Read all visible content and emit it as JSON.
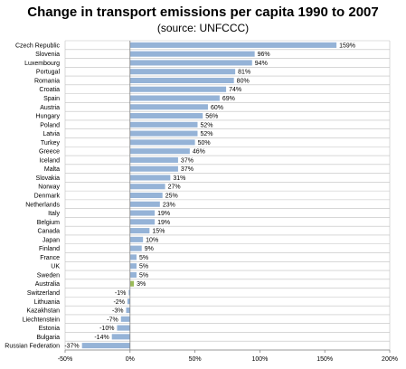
{
  "chart_data": {
    "type": "bar",
    "orientation": "horizontal",
    "title": "Change in transport emissions per capita 1990 to 2007",
    "subtitle": "(source: UNFCCC)",
    "categories": [
      "Czech Republic",
      "Slovenia",
      "Luxembourg",
      "Portugal",
      "Romania",
      "Croatia",
      "Spain",
      "Austria",
      "Hungary",
      "Poland",
      "Latvia",
      "Turkey",
      "Greece",
      "Iceland",
      "Malta",
      "Slovakia",
      "Norway",
      "Denmark",
      "Netherlands",
      "Italy",
      "Belgium",
      "Canada",
      "Japan",
      "Finland",
      "France",
      "UK",
      "Sweden",
      "Australia",
      "Switzerland",
      "Lithuania",
      "Kazakhstan",
      "Liechtenstein",
      "Estonia",
      "Bulgaria",
      "Russian Federation"
    ],
    "values": [
      159,
      96,
      94,
      81,
      80,
      74,
      69,
      60,
      56,
      52,
      52,
      50,
      46,
      37,
      37,
      31,
      27,
      25,
      23,
      19,
      19,
      15,
      10,
      9,
      5,
      5,
      5,
      3,
      -1,
      -2,
      -3,
      -7,
      -10,
      -14,
      -37
    ],
    "data_labels": [
      "159%",
      "96%",
      "94%",
      "81%",
      "80%",
      "74%",
      "69%",
      "60%",
      "56%",
      "52%",
      "52%",
      "50%",
      "46%",
      "37%",
      "37%",
      "31%",
      "27%",
      "25%",
      "23%",
      "19%",
      "19%",
      "15%",
      "10%",
      "9%",
      "5%",
      "5%",
      "5%",
      "3%",
      "-1%",
      "-2%",
      "-3%",
      "-7%",
      "-10%",
      "-14%",
      "-37%"
    ],
    "highlight_category": "Australia",
    "xlim": [
      -50,
      200
    ],
    "x_ticks": [
      -50,
      0,
      50,
      100,
      150,
      200
    ],
    "x_tick_labels": [
      "-50%",
      "0%",
      "50%",
      "100%",
      "150%",
      "200%"
    ],
    "grid": "horizontal row separators",
    "legend": "none",
    "colors": {
      "bar": "#95b3d7",
      "highlight": "#9bbb59",
      "grid": "#bfbfbf",
      "axis": "#808080"
    }
  }
}
